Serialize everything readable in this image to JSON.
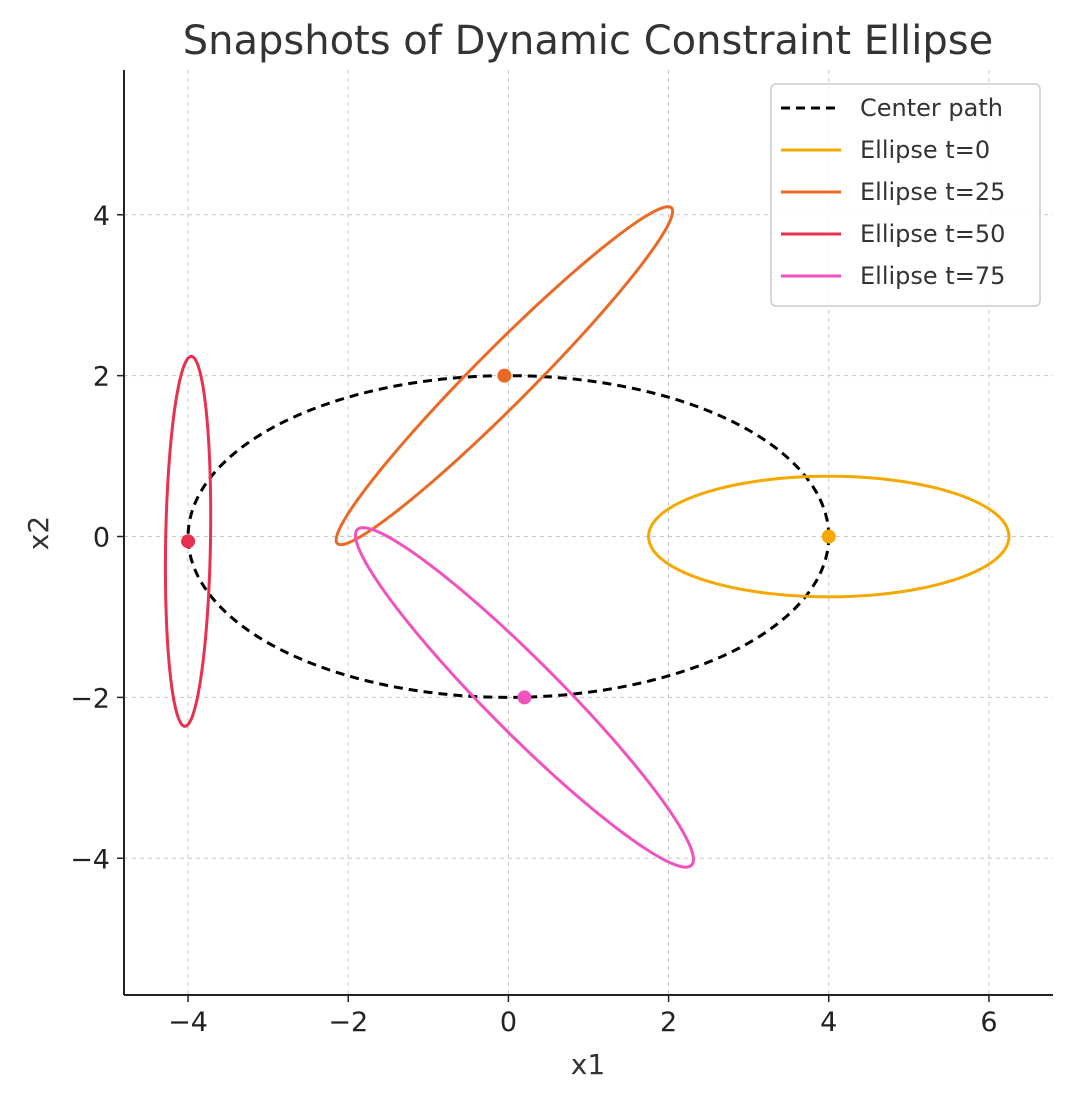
{
  "chart_data": {
    "type": "line",
    "title": "Snapshots of Dynamic Constraint Ellipse",
    "xlabel": "x1",
    "ylabel": "x2",
    "xlim": [
      -4.8,
      6.8
    ],
    "ylim": [
      -5.7,
      5.8
    ],
    "xticks": [
      -4,
      -2,
      0,
      2,
      4,
      6
    ],
    "yticks": [
      -4,
      -2,
      0,
      2,
      4
    ],
    "xtick_labels": [
      "−4",
      "−2",
      "0",
      "2",
      "4",
      "6"
    ],
    "ytick_labels": [
      "−4",
      "−2",
      "0",
      "2",
      "4"
    ],
    "grid": true,
    "legend_position": "top-right",
    "center_path": {
      "name": "Center path",
      "color": "#000000",
      "style": "dashed",
      "a": 4,
      "b": 2
    },
    "series": [
      {
        "name": "Ellipse t=0",
        "color": "#f5a800",
        "center": [
          4,
          0
        ],
        "semi_major": 2.25,
        "semi_minor": 0.75,
        "angle_deg": 0
      },
      {
        "name": "Ellipse t=25",
        "color": "#ea6a25",
        "center": [
          -0.05,
          2
        ],
        "semi_major": 2.95,
        "semi_minor": 0.35,
        "angle_deg": 45
      },
      {
        "name": "Ellipse t=50",
        "color": "#e8304f",
        "center": [
          -4,
          -0.06
        ],
        "semi_major": 2.3,
        "semi_minor": 0.28,
        "angle_deg": 89
      },
      {
        "name": "Ellipse t=75",
        "color": "#f052c0",
        "center": [
          0.2,
          -2
        ],
        "semi_major": 2.95,
        "semi_minor": 0.45,
        "angle_deg": -45
      }
    ]
  }
}
